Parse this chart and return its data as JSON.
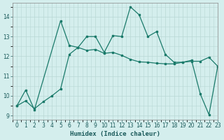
{
  "title": "",
  "xlabel": "Humidex (Indice chaleur)",
  "bg_color": "#d4eeed",
  "grid_color": "#b8d8d4",
  "line_color": "#1a7a6a",
  "xlim": [
    -0.5,
    23
  ],
  "ylim": [
    8.8,
    14.7
  ],
  "yticks": [
    9,
    10,
    11,
    12,
    13,
    14
  ],
  "xticks": [
    0,
    1,
    2,
    3,
    4,
    5,
    6,
    7,
    8,
    9,
    10,
    11,
    12,
    13,
    14,
    15,
    16,
    17,
    18,
    19,
    20,
    21,
    22,
    23
  ],
  "line1_x": [
    0,
    1,
    2,
    5,
    6,
    7,
    8,
    9,
    10,
    11,
    12,
    13,
    14,
    15,
    16,
    17,
    18,
    19,
    20,
    21,
    22,
    23
  ],
  "line1_y": [
    9.5,
    10.3,
    9.3,
    13.8,
    12.55,
    12.45,
    13.0,
    13.0,
    12.2,
    13.05,
    13.0,
    14.5,
    14.1,
    13.0,
    13.25,
    12.1,
    11.7,
    11.7,
    11.8,
    10.1,
    9.05,
    11.5
  ],
  "line2_x": [
    0,
    1,
    2,
    3,
    4,
    5,
    6,
    7,
    8,
    9,
    10,
    11,
    12,
    13,
    14,
    15,
    16,
    17,
    18,
    19,
    20,
    21,
    22,
    23
  ],
  "line2_y": [
    9.5,
    9.75,
    9.35,
    9.7,
    10.0,
    10.35,
    12.1,
    12.45,
    12.3,
    12.35,
    12.15,
    12.2,
    12.05,
    11.85,
    11.72,
    11.7,
    11.65,
    11.62,
    11.62,
    11.7,
    11.75,
    11.75,
    11.95,
    11.5
  ]
}
